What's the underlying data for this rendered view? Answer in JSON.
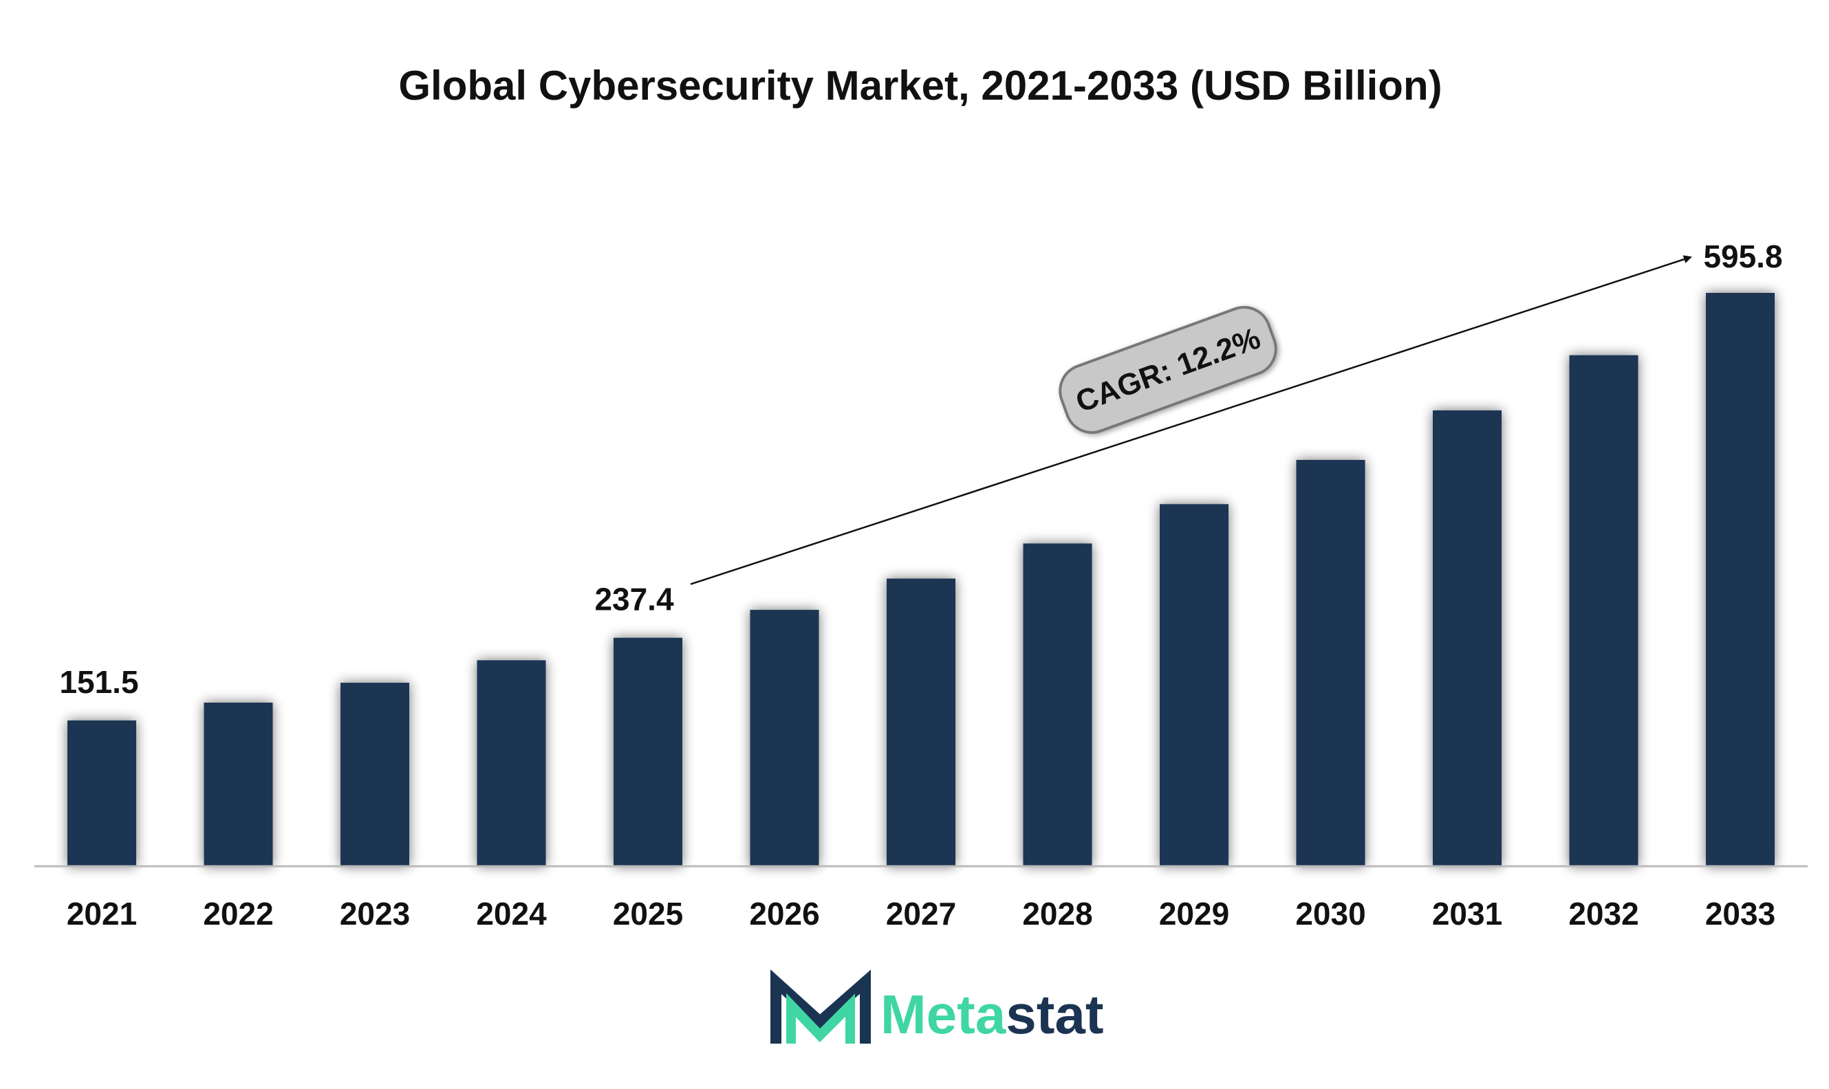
{
  "chart_data": {
    "type": "bar",
    "title": "Global Cybersecurity Market, 2021-2033 (USD Billion)",
    "xlabel": "",
    "ylabel": "",
    "categories": [
      "2021",
      "2022",
      "2023",
      "2024",
      "2025",
      "2026",
      "2027",
      "2028",
      "2029",
      "2030",
      "2031",
      "2032",
      "2033"
    ],
    "values": [
      151.5,
      170.0,
      190.7,
      214.0,
      237.4,
      266.4,
      298.9,
      335.4,
      376.3,
      422.2,
      473.7,
      531.0,
      595.8
    ],
    "ylim": [
      0,
      650
    ],
    "grid": false,
    "legend": "none",
    "data_labels": [
      {
        "category": "2021",
        "text": "151.5"
      },
      {
        "category": "2025",
        "text": "237.4"
      },
      {
        "category": "2033",
        "text": "595.8"
      }
    ],
    "annotation": {
      "label": "CAGR: 12.2%",
      "from_category": "2025",
      "to_category": "2033"
    }
  },
  "colors": {
    "bar": "#1b3452",
    "text": "#111111",
    "axis": "#bbbbbb",
    "badge_fill": "#c8c8c8",
    "badge_stroke": "#777777",
    "logo_dark": "#1b3452",
    "logo_accent": "#3fd6a3"
  },
  "logo": {
    "part1": "Meta",
    "part2": "stat"
  }
}
